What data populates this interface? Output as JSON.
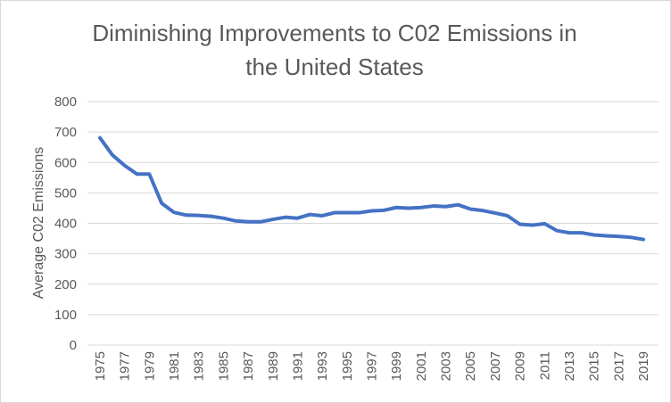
{
  "chart_data": {
    "type": "line",
    "title_lines": [
      "Diminishing Improvements to C02 Emissions in",
      "the United States"
    ],
    "xlabel": "",
    "ylabel": "Average C02 Emissions",
    "ylim": [
      0,
      800
    ],
    "yticks": [
      0,
      100,
      200,
      300,
      400,
      500,
      600,
      700,
      800
    ],
    "x_tick_labels": [
      "1975",
      "1977",
      "1979",
      "1981",
      "1983",
      "1985",
      "1987",
      "1989",
      "1991",
      "1993",
      "1995",
      "1997",
      "1999",
      "2001",
      "2003",
      "2005",
      "2007",
      "2009",
      "2011",
      "2013",
      "2015",
      "2017",
      "2019"
    ],
    "grid": true,
    "legend": "none",
    "line_color": "#4472C4",
    "x": [
      1975,
      1976,
      1977,
      1978,
      1979,
      1980,
      1981,
      1982,
      1983,
      1984,
      1985,
      1986,
      1987,
      1988,
      1989,
      1990,
      1991,
      1992,
      1993,
      1994,
      1995,
      1996,
      1997,
      1998,
      1999,
      2000,
      2001,
      2002,
      2003,
      2004,
      2005,
      2006,
      2007,
      2008,
      2009,
      2010,
      2011,
      2012,
      2013,
      2014,
      2015,
      2016,
      2017,
      2018,
      2019
    ],
    "series": [
      {
        "values": [
          681,
          625,
          590,
          562,
          562,
          466,
          436,
          427,
          426,
          423,
          417,
          408,
          405,
          405,
          413,
          420,
          417,
          429,
          425,
          435,
          435,
          435,
          441,
          443,
          452,
          450,
          452,
          457,
          455,
          461,
          447,
          442,
          434,
          425,
          397,
          394,
          399,
          376,
          369,
          369,
          362,
          359,
          357,
          354,
          347
        ]
      }
    ]
  }
}
